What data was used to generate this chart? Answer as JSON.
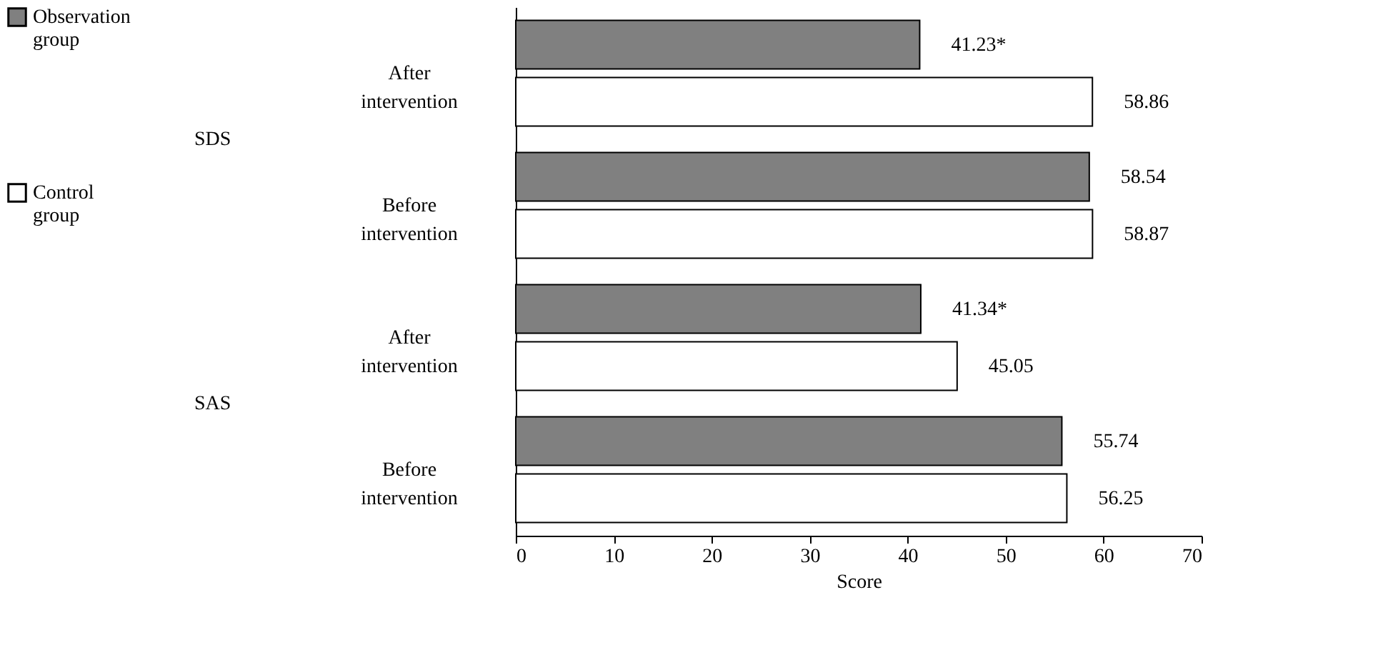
{
  "chart_data": {
    "type": "bar",
    "orientation": "horizontal",
    "categories": [
      "After intervention",
      "Before intervention",
      "After intervention",
      "Before intervention"
    ],
    "series": [
      {
        "name": "Observation group",
        "color": "#808080",
        "values": [
          41.23,
          58.54,
          41.34,
          55.74
        ],
        "value_labels": [
          "41.23*",
          "58.54",
          "41.34*",
          "55.74"
        ]
      },
      {
        "name": "Control group",
        "color": "#ffffff",
        "values": [
          58.86,
          58.87,
          45.05,
          56.25
        ],
        "value_labels": [
          "58.86",
          "58.87",
          "45.05",
          "56.25"
        ]
      }
    ],
    "annotations": [
      "SDS",
      "SAS"
    ],
    "xlabel": "Score",
    "xlim": [
      0,
      70
    ],
    "xticks": [
      0,
      10,
      20,
      30,
      40,
      50,
      60,
      70
    ],
    "grid": false,
    "legend": "left"
  }
}
